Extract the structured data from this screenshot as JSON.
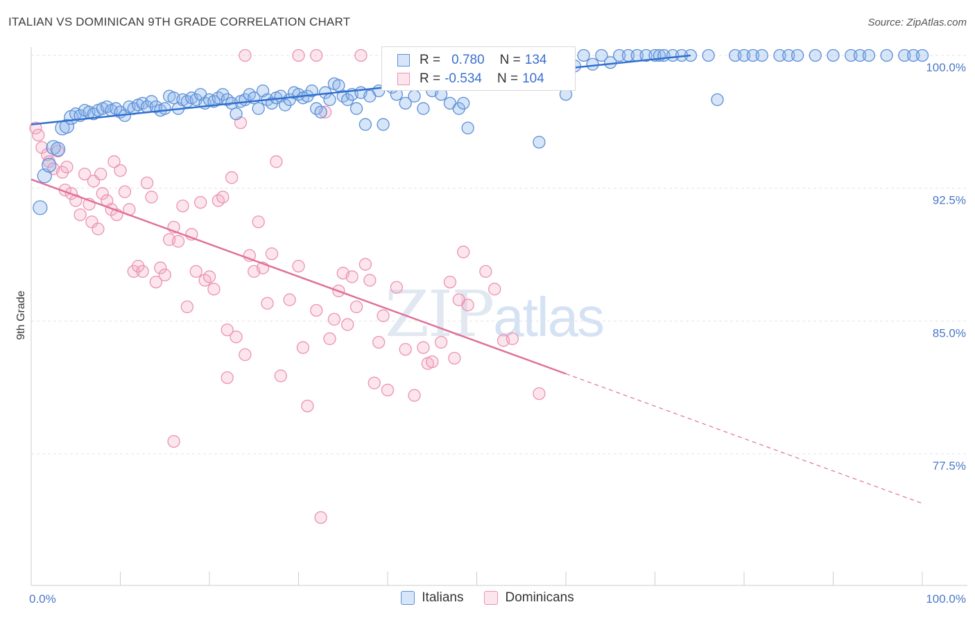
{
  "header": {
    "title": "ITALIAN VS DOMINICAN 9TH GRADE CORRELATION CHART",
    "source": "Source: ZipAtlas.com"
  },
  "watermark": {
    "zip": "ZIP",
    "atlas": "atlas"
  },
  "legend": {
    "rows": [
      {
        "r_label": "R =",
        "r_value": "0.780",
        "n_label": "N =",
        "n_value": "134",
        "color": "#6f9fe0"
      },
      {
        "r_label": "R =",
        "r_value": "-0.534",
        "n_label": "N =",
        "n_value": "104",
        "color": "#ee9bb6"
      }
    ]
  },
  "bottom_legend": {
    "italians": "Italians",
    "dominicans": "Dominicans"
  },
  "colors": {
    "italians_fill": "rgba(140,180,235,0.35)",
    "italians_stroke": "#5b8fd6",
    "italians_line": "#2f6fd0",
    "dominicans_fill": "rgba(245,170,195,0.30)",
    "dominicans_stroke": "#ea93b0",
    "dominicans_line": "#e0709a",
    "tick_text": "#4a78c8",
    "grid": "#e3e3e3"
  },
  "chart_data": {
    "type": "scatter",
    "title": "ITALIAN VS DOMINICAN 9TH GRADE CORRELATION CHART",
    "xlabel": "",
    "ylabel": "9th Grade",
    "xlim": [
      0,
      100
    ],
    "ylim": [
      70.8,
      101.0
    ],
    "x_tick_labels": [
      "0.0%",
      "100.0%"
    ],
    "y_ticks": [
      77.5,
      85.0,
      92.5,
      100.0
    ],
    "y_tick_labels": [
      "77.5%",
      "85.0%",
      "92.5%",
      "100.0%"
    ],
    "grid": true,
    "legend_position": "top-center",
    "series": [
      {
        "name": "Italians",
        "trend": {
          "x": [
            0,
            74
          ],
          "y": [
            96.1,
            100.0
          ]
        },
        "points": [
          [
            1,
            91.4
          ],
          [
            1.5,
            93.2
          ],
          [
            2,
            93.8
          ],
          [
            2.5,
            94.8
          ],
          [
            3,
            94.7
          ],
          [
            3.5,
            95.9
          ],
          [
            4,
            96.0
          ],
          [
            4.5,
            96.5
          ],
          [
            5,
            96.7
          ],
          [
            5.5,
            96.6
          ],
          [
            6,
            96.9
          ],
          [
            6.5,
            96.8
          ],
          [
            7,
            96.7
          ],
          [
            7.5,
            96.9
          ],
          [
            8,
            97.0
          ],
          [
            8.5,
            97.1
          ],
          [
            9,
            96.9
          ],
          [
            9.5,
            97.0
          ],
          [
            10,
            96.8
          ],
          [
            10.5,
            96.6
          ],
          [
            11,
            97.1
          ],
          [
            11.5,
            97.0
          ],
          [
            12,
            97.2
          ],
          [
            12.5,
            97.3
          ],
          [
            13,
            97.1
          ],
          [
            13.5,
            97.4
          ],
          [
            14,
            97.1
          ],
          [
            14.5,
            96.9
          ],
          [
            15,
            97.0
          ],
          [
            15.5,
            97.7
          ],
          [
            16,
            97.6
          ],
          [
            16.5,
            97.0
          ],
          [
            17,
            97.5
          ],
          [
            17.5,
            97.4
          ],
          [
            18,
            97.6
          ],
          [
            18.5,
            97.5
          ],
          [
            19,
            97.8
          ],
          [
            19.5,
            97.3
          ],
          [
            20,
            97.5
          ],
          [
            20.5,
            97.4
          ],
          [
            21,
            97.6
          ],
          [
            21.5,
            97.8
          ],
          [
            22,
            97.5
          ],
          [
            22.5,
            97.3
          ],
          [
            23,
            96.7
          ],
          [
            23.5,
            97.4
          ],
          [
            24,
            97.5
          ],
          [
            24.5,
            97.8
          ],
          [
            25,
            97.6
          ],
          [
            25.5,
            97.0
          ],
          [
            26,
            98.0
          ],
          [
            26.5,
            97.5
          ],
          [
            27,
            97.3
          ],
          [
            27.5,
            97.6
          ],
          [
            28,
            97.7
          ],
          [
            28.5,
            97.2
          ],
          [
            29,
            97.5
          ],
          [
            29.5,
            97.9
          ],
          [
            30,
            97.8
          ],
          [
            30.5,
            97.6
          ],
          [
            31,
            97.7
          ],
          [
            31.5,
            98.0
          ],
          [
            32,
            97.0
          ],
          [
            32.5,
            96.8
          ],
          [
            33,
            97.9
          ],
          [
            33.5,
            97.5
          ],
          [
            34,
            98.4
          ],
          [
            34.5,
            98.3
          ],
          [
            35,
            97.7
          ],
          [
            35.5,
            97.5
          ],
          [
            36,
            97.8
          ],
          [
            36.5,
            97.0
          ],
          [
            37,
            97.9
          ],
          [
            37.5,
            96.1
          ],
          [
            38,
            97.7
          ],
          [
            39,
            98.0
          ],
          [
            39.5,
            96.1
          ],
          [
            40,
            98.6
          ],
          [
            40.5,
            98.2
          ],
          [
            41,
            97.8
          ],
          [
            42,
            97.3
          ],
          [
            43,
            97.7
          ],
          [
            44,
            97.0
          ],
          [
            45,
            98.0
          ],
          [
            46,
            97.8
          ],
          [
            47,
            97.3
          ],
          [
            48,
            97.0
          ],
          [
            48.5,
            97.3
          ],
          [
            49,
            95.9
          ],
          [
            50,
            99.2
          ],
          [
            50.5,
            99.4
          ],
          [
            51,
            99.2
          ],
          [
            52,
            100.0
          ],
          [
            53,
            99.7
          ],
          [
            54,
            100.0
          ],
          [
            55,
            100.0
          ],
          [
            56,
            99.6
          ],
          [
            57,
            95.1
          ],
          [
            58,
            100.0
          ],
          [
            59,
            100.0
          ],
          [
            60,
            97.8
          ],
          [
            61,
            99.4
          ],
          [
            62,
            100.0
          ],
          [
            63,
            99.5
          ],
          [
            64,
            100.0
          ],
          [
            65,
            99.6
          ],
          [
            66,
            100.0
          ],
          [
            67,
            100.0
          ],
          [
            68,
            100.0
          ],
          [
            69,
            100.0
          ],
          [
            70,
            100.0
          ],
          [
            70.5,
            100.0
          ],
          [
            71,
            100.0
          ],
          [
            72,
            100.0
          ],
          [
            73,
            100.0
          ],
          [
            74,
            100.0
          ],
          [
            76,
            100.0
          ],
          [
            77,
            97.5
          ],
          [
            79,
            100.0
          ],
          [
            80,
            100.0
          ],
          [
            81,
            100.0
          ],
          [
            82,
            100.0
          ],
          [
            84,
            100.0
          ],
          [
            85,
            100.0
          ],
          [
            86,
            100.0
          ],
          [
            88,
            100.0
          ],
          [
            90,
            100.0
          ],
          [
            92,
            100.0
          ],
          [
            93,
            100.0
          ],
          [
            94,
            100.0
          ],
          [
            96,
            100.0
          ],
          [
            98,
            100.0
          ],
          [
            99,
            100.0
          ],
          [
            100,
            100.0
          ]
        ]
      },
      {
        "name": "Dominicans",
        "trend": {
          "x": [
            0,
            100
          ],
          "y": [
            93.0,
            74.7
          ]
        },
        "trend_solid_until_x": 60,
        "points": [
          [
            0.5,
            95.9
          ],
          [
            0.8,
            95.5
          ],
          [
            1.2,
            94.8
          ],
          [
            1.8,
            94.4
          ],
          [
            2,
            94.0
          ],
          [
            2.5,
            93.6
          ],
          [
            3,
            94.6
          ],
          [
            3.5,
            93.4
          ],
          [
            3.8,
            92.4
          ],
          [
            4,
            93.7
          ],
          [
            4.5,
            92.2
          ],
          [
            5,
            91.8
          ],
          [
            5.5,
            91.0
          ],
          [
            6,
            93.3
          ],
          [
            6.5,
            91.6
          ],
          [
            6.8,
            90.6
          ],
          [
            7,
            92.9
          ],
          [
            7.5,
            90.2
          ],
          [
            7.8,
            93.3
          ],
          [
            8,
            92.2
          ],
          [
            8.5,
            91.8
          ],
          [
            9,
            91.3
          ],
          [
            9.3,
            94.0
          ],
          [
            9.6,
            91.0
          ],
          [
            10,
            93.5
          ],
          [
            10.5,
            92.3
          ],
          [
            11,
            91.3
          ],
          [
            11.5,
            87.8
          ],
          [
            12,
            88.1
          ],
          [
            12.5,
            87.8
          ],
          [
            13,
            92.8
          ],
          [
            13.5,
            92.0
          ],
          [
            14,
            87.2
          ],
          [
            14.5,
            88.0
          ],
          [
            15,
            87.6
          ],
          [
            15.5,
            89.6
          ],
          [
            16,
            90.3
          ],
          [
            16.5,
            89.5
          ],
          [
            17,
            91.5
          ],
          [
            17.5,
            85.8
          ],
          [
            18,
            89.9
          ],
          [
            18.5,
            87.8
          ],
          [
            19,
            91.7
          ],
          [
            19.5,
            87.3
          ],
          [
            20,
            87.5
          ],
          [
            20.5,
            86.8
          ],
          [
            21,
            91.8
          ],
          [
            21.5,
            92.0
          ],
          [
            22,
            84.5
          ],
          [
            22.5,
            93.1
          ],
          [
            23,
            84.1
          ],
          [
            23.5,
            96.2
          ],
          [
            24,
            83.1
          ],
          [
            24.5,
            88.7
          ],
          [
            25,
            87.8
          ],
          [
            25.5,
            90.6
          ],
          [
            26,
            88.0
          ],
          [
            26.5,
            86.0
          ],
          [
            27,
            88.8
          ],
          [
            27.5,
            94.0
          ],
          [
            28,
            81.9
          ],
          [
            29,
            86.2
          ],
          [
            30,
            88.1
          ],
          [
            30.5,
            83.5
          ],
          [
            31,
            80.2
          ],
          [
            32,
            85.6
          ],
          [
            33,
            96.8
          ],
          [
            33.5,
            84.0
          ],
          [
            34,
            85.1
          ],
          [
            34.5,
            86.7
          ],
          [
            35,
            87.7
          ],
          [
            35.5,
            84.8
          ],
          [
            36,
            87.5
          ],
          [
            36.5,
            85.8
          ],
          [
            37,
            100.0
          ],
          [
            37.5,
            88.2
          ],
          [
            38,
            87.3
          ],
          [
            38.5,
            81.5
          ],
          [
            39,
            83.8
          ],
          [
            39.5,
            85.3
          ],
          [
            40,
            81.1
          ],
          [
            41,
            86.9
          ],
          [
            42,
            83.4
          ],
          [
            43,
            80.8
          ],
          [
            44,
            83.5
          ],
          [
            44.5,
            82.6
          ],
          [
            45,
            82.7
          ],
          [
            46,
            83.8
          ],
          [
            47,
            87.2
          ],
          [
            47.5,
            82.9
          ],
          [
            48,
            86.2
          ],
          [
            48.5,
            88.9
          ],
          [
            49,
            85.9
          ],
          [
            51,
            87.8
          ],
          [
            52,
            86.8
          ],
          [
            53,
            83.9
          ],
          [
            54,
            84.0
          ],
          [
            57,
            80.9
          ],
          [
            24,
            100.0
          ],
          [
            30,
            100.0
          ],
          [
            32,
            100.0
          ],
          [
            22,
            81.8
          ],
          [
            16,
            78.2
          ],
          [
            32.5,
            73.9
          ]
        ]
      }
    ]
  }
}
